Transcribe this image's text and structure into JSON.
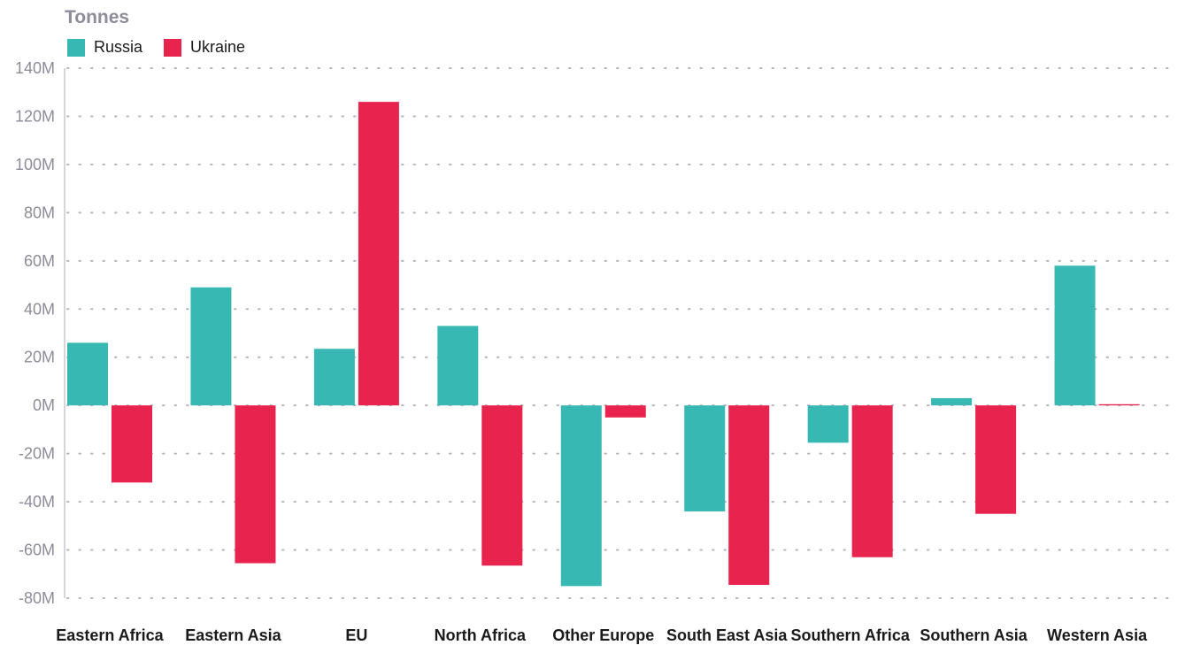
{
  "chart_data": {
    "type": "bar",
    "unit_label": "Tonnes",
    "title": "",
    "xlabel": "",
    "ylabel": "",
    "categories": [
      "Eastern Africa",
      "Eastern Asia",
      "EU",
      "North Africa",
      "Other Europe",
      "South East Asia",
      "Southern Africa",
      "Southern Asia",
      "Western Asia"
    ],
    "series": [
      {
        "name": "Russia",
        "color": "#38b8b3",
        "values": [
          26,
          49,
          23.5,
          33,
          -75,
          -44,
          -15.5,
          3,
          58
        ]
      },
      {
        "name": "Ukraine",
        "color": "#e8234d",
        "values": [
          -32,
          -65.5,
          126,
          -66.5,
          -5,
          -74.5,
          -63,
          -45,
          0.5
        ]
      }
    ],
    "yticks": [
      140,
      120,
      100,
      80,
      60,
      40,
      20,
      0,
      -20,
      -40,
      -60,
      -80
    ],
    "ytick_labels": [
      "140M",
      "120M",
      "100M",
      "80M",
      "60M",
      "40M",
      "20M",
      "0M",
      "-20M",
      "-40M",
      "-60M",
      "-80M"
    ],
    "ylim": [
      -80,
      140
    ],
    "grid": "dotted-horizontal",
    "legend_position": "top-left"
  }
}
